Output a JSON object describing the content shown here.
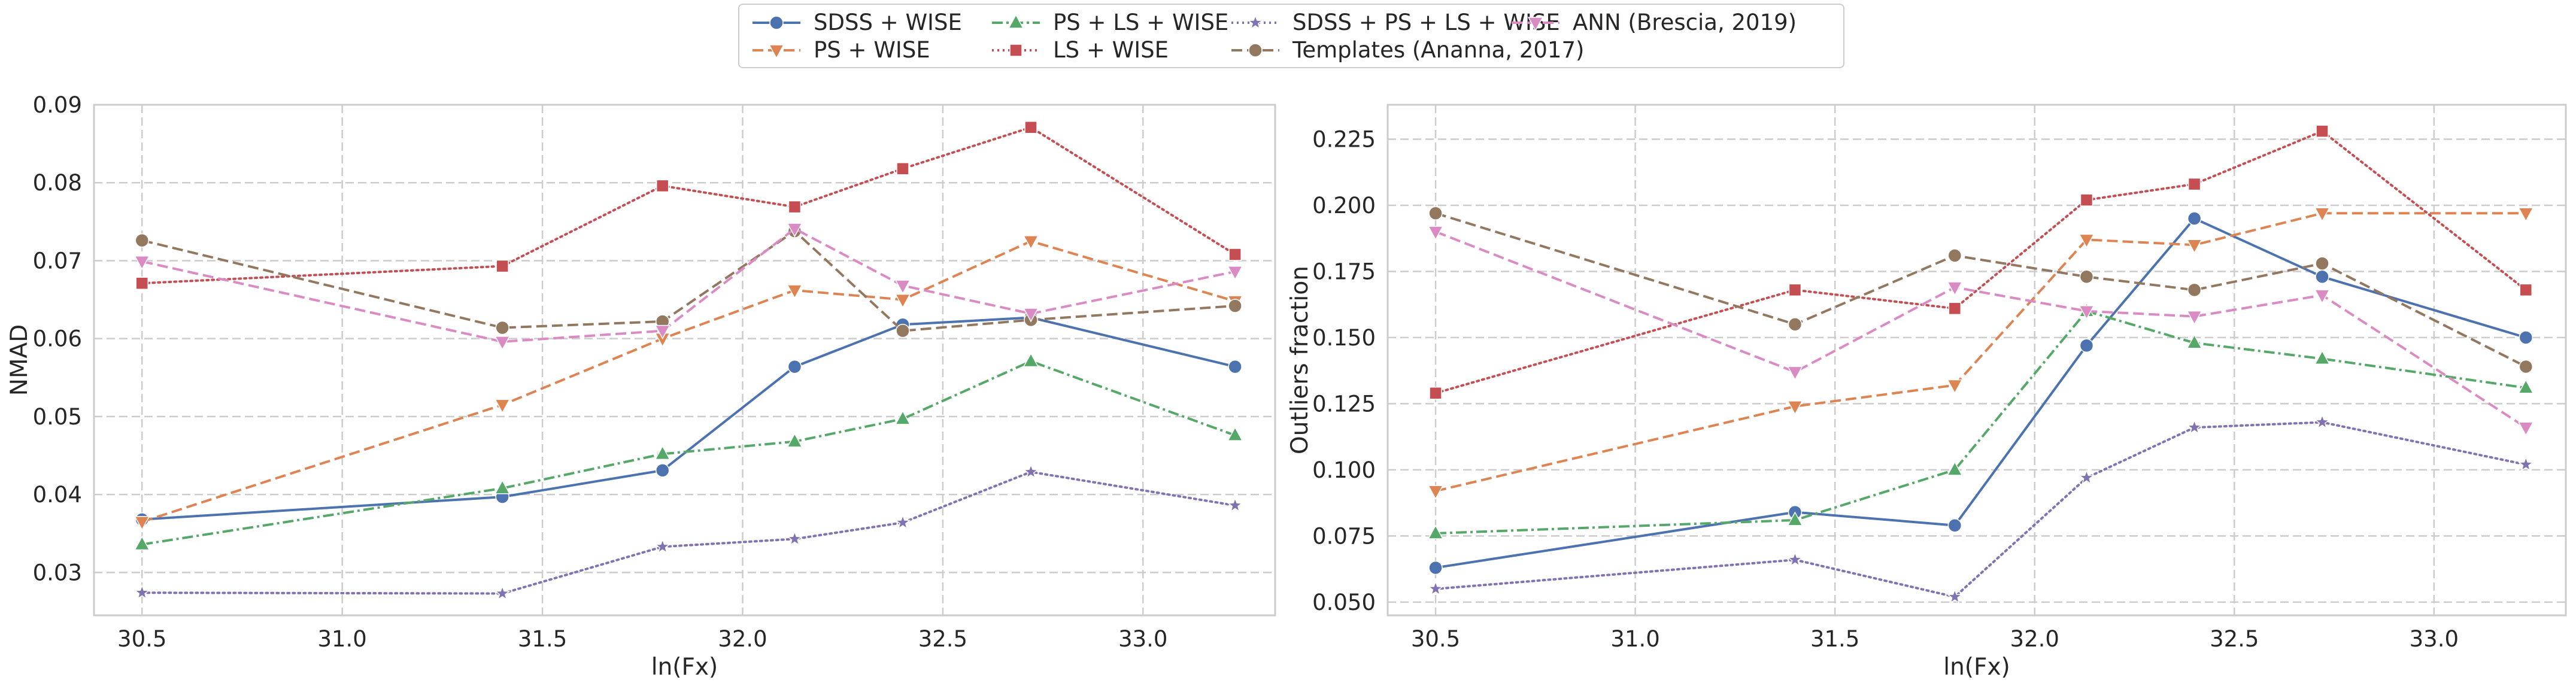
{
  "colors": {
    "grid": "#cccccc",
    "axes_bg": "#ffffff",
    "spine": "#cccccc",
    "text": "#262626"
  },
  "chart_data": [
    {
      "type": "line",
      "xlabel": "ln(Fx)",
      "ylabel": "NMAD",
      "x": [
        30.5,
        31.4,
        31.8,
        32.13,
        32.4,
        32.72,
        33.23
      ],
      "xlim": [
        30.38,
        33.33
      ],
      "ylim": [
        0.0245,
        0.09
      ],
      "xticks": [
        30.5,
        31.0,
        31.5,
        32.0,
        32.5,
        33.0
      ],
      "xtick_labels": [
        "30.5",
        "31.0",
        "31.5",
        "32.0",
        "32.5",
        "33.0"
      ],
      "yticks": [
        0.03,
        0.04,
        0.05,
        0.06,
        0.07,
        0.08,
        0.09
      ],
      "ytick_labels": [
        "0.03",
        "0.04",
        "0.05",
        "0.06",
        "0.07",
        "0.08",
        "0.09"
      ],
      "grid": true,
      "series": [
        {
          "name": "SDSS + WISE",
          "values": [
            0.0368,
            0.0397,
            0.0431,
            0.0564,
            0.0618,
            0.0627,
            0.0564
          ]
        },
        {
          "name": "PS + WISE",
          "values": [
            0.0365,
            0.0515,
            0.06,
            0.0662,
            0.065,
            0.0725,
            0.0648
          ]
        },
        {
          "name": "PS + LS + WISE",
          "values": [
            0.0336,
            0.0408,
            0.0452,
            0.0468,
            0.0497,
            0.0571,
            0.0476
          ]
        },
        {
          "name": "LS + WISE",
          "values": [
            0.0671,
            0.0693,
            0.0796,
            0.0769,
            0.0818,
            0.0871,
            0.0708
          ]
        },
        {
          "name": "SDSS + PS + LS + WISE",
          "values": [
            0.0274,
            0.0273,
            0.0333,
            0.0343,
            0.0364,
            0.0429,
            0.0386
          ]
        },
        {
          "name": "Templates (Ananna, 2017)",
          "values": [
            0.0726,
            0.0614,
            0.0622,
            0.0738,
            0.061,
            0.0624,
            0.0642
          ]
        },
        {
          "name": "ANN (Brescia, 2019)",
          "values": [
            0.0699,
            0.0596,
            0.061,
            0.0741,
            0.0668,
            0.0632,
            0.0686
          ]
        }
      ]
    },
    {
      "type": "line",
      "xlabel": "ln(Fx)",
      "ylabel": "Outliers fraction",
      "x": [
        30.5,
        31.4,
        31.8,
        32.13,
        32.4,
        32.72,
        33.23
      ],
      "xlim": [
        30.38,
        33.33
      ],
      "ylim": [
        0.045,
        0.238
      ],
      "xticks": [
        30.5,
        31.0,
        31.5,
        32.0,
        32.5,
        33.0
      ],
      "xtick_labels": [
        "30.5",
        "31.0",
        "31.5",
        "32.0",
        "32.5",
        "33.0"
      ],
      "yticks": [
        0.05,
        0.075,
        0.1,
        0.125,
        0.15,
        0.175,
        0.2,
        0.225
      ],
      "ytick_labels": [
        "0.050",
        "0.075",
        "0.100",
        "0.125",
        "0.150",
        "0.175",
        "0.200",
        "0.225"
      ],
      "grid": true,
      "series": [
        {
          "name": "SDSS + WISE",
          "values": [
            0.063,
            0.084,
            0.079,
            0.147,
            0.195,
            0.173,
            0.15
          ]
        },
        {
          "name": "PS + WISE",
          "values": [
            0.092,
            0.124,
            0.132,
            0.187,
            0.185,
            0.197,
            0.197
          ]
        },
        {
          "name": "PS + LS + WISE",
          "values": [
            0.076,
            0.081,
            0.1,
            0.16,
            0.148,
            0.142,
            0.131
          ]
        },
        {
          "name": "LS + WISE",
          "values": [
            0.129,
            0.168,
            0.161,
            0.202,
            0.208,
            0.228,
            0.168
          ]
        },
        {
          "name": "SDSS + PS + LS + WISE",
          "values": [
            0.055,
            0.066,
            0.052,
            0.097,
            0.116,
            0.118,
            0.102
          ]
        },
        {
          "name": "Templates (Ananna, 2017)",
          "values": [
            0.197,
            0.155,
            0.181,
            0.173,
            0.168,
            0.178,
            0.139
          ]
        },
        {
          "name": "ANN (Brescia, 2019)",
          "values": [
            0.19,
            0.137,
            0.169,
            0.16,
            0.158,
            0.166,
            0.116
          ]
        }
      ]
    }
  ],
  "styles": [
    {
      "name": "SDSS + WISE",
      "color": "#4c72b0",
      "dash": "none",
      "marker": "circle"
    },
    {
      "name": "PS + WISE",
      "color": "#dd8452",
      "dash": "18 8",
      "marker": "triangle-down"
    },
    {
      "name": "PS + LS + WISE",
      "color": "#55a868",
      "dash": "18 6 4 6",
      "marker": "triangle-up"
    },
    {
      "name": "LS + WISE",
      "color": "#c44e52",
      "dash": "3 6",
      "marker": "square"
    },
    {
      "name": "SDSS + PS + LS + WISE",
      "color": "#8172b3",
      "dash": "3 6",
      "marker": "star"
    },
    {
      "name": "Templates (Ananna, 2017)",
      "color": "#937860",
      "dash": "18 8",
      "marker": "circle"
    },
    {
      "name": "ANN (Brescia, 2019)",
      "color": "#da8bc3",
      "dash": "18 8",
      "marker": "triangle-down"
    }
  ],
  "legend": {
    "placement": "top-center",
    "entries": [
      "SDSS + WISE",
      "PS + WISE",
      "PS + LS + WISE",
      "LS + WISE",
      "SDSS + PS + LS + WISE",
      "Templates (Ananna, 2017)",
      "ANN (Brescia, 2019)"
    ]
  }
}
